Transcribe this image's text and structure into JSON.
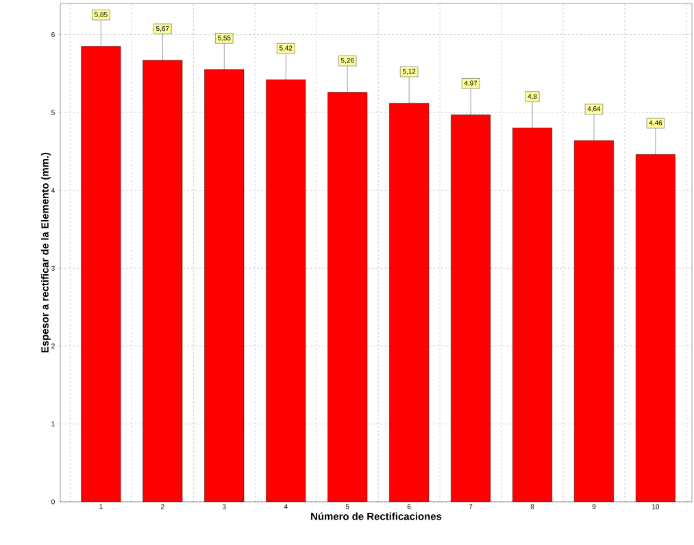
{
  "chart_data": {
    "type": "bar",
    "xlabel": "Número de Rectificaciones",
    "ylabel": "Espesor a rectificar de la Elemento (mm.)",
    "categories": [
      "1",
      "2",
      "3",
      "4",
      "5",
      "6",
      "7",
      "8",
      "9",
      "10"
    ],
    "values": [
      5.85,
      5.67,
      5.55,
      5.42,
      5.26,
      5.12,
      4.97,
      4.8,
      4.64,
      4.46
    ],
    "value_labels": [
      "5,85",
      "5,67",
      "5,55",
      "5,42",
      "5,26",
      "5,12",
      "4,97",
      "4,8",
      "4,64",
      "4,46"
    ],
    "color": "#ff0000",
    "ylim": [
      0,
      6.4
    ],
    "yticks": [
      0,
      1,
      2,
      3,
      4,
      5,
      6
    ],
    "grid": true
  }
}
